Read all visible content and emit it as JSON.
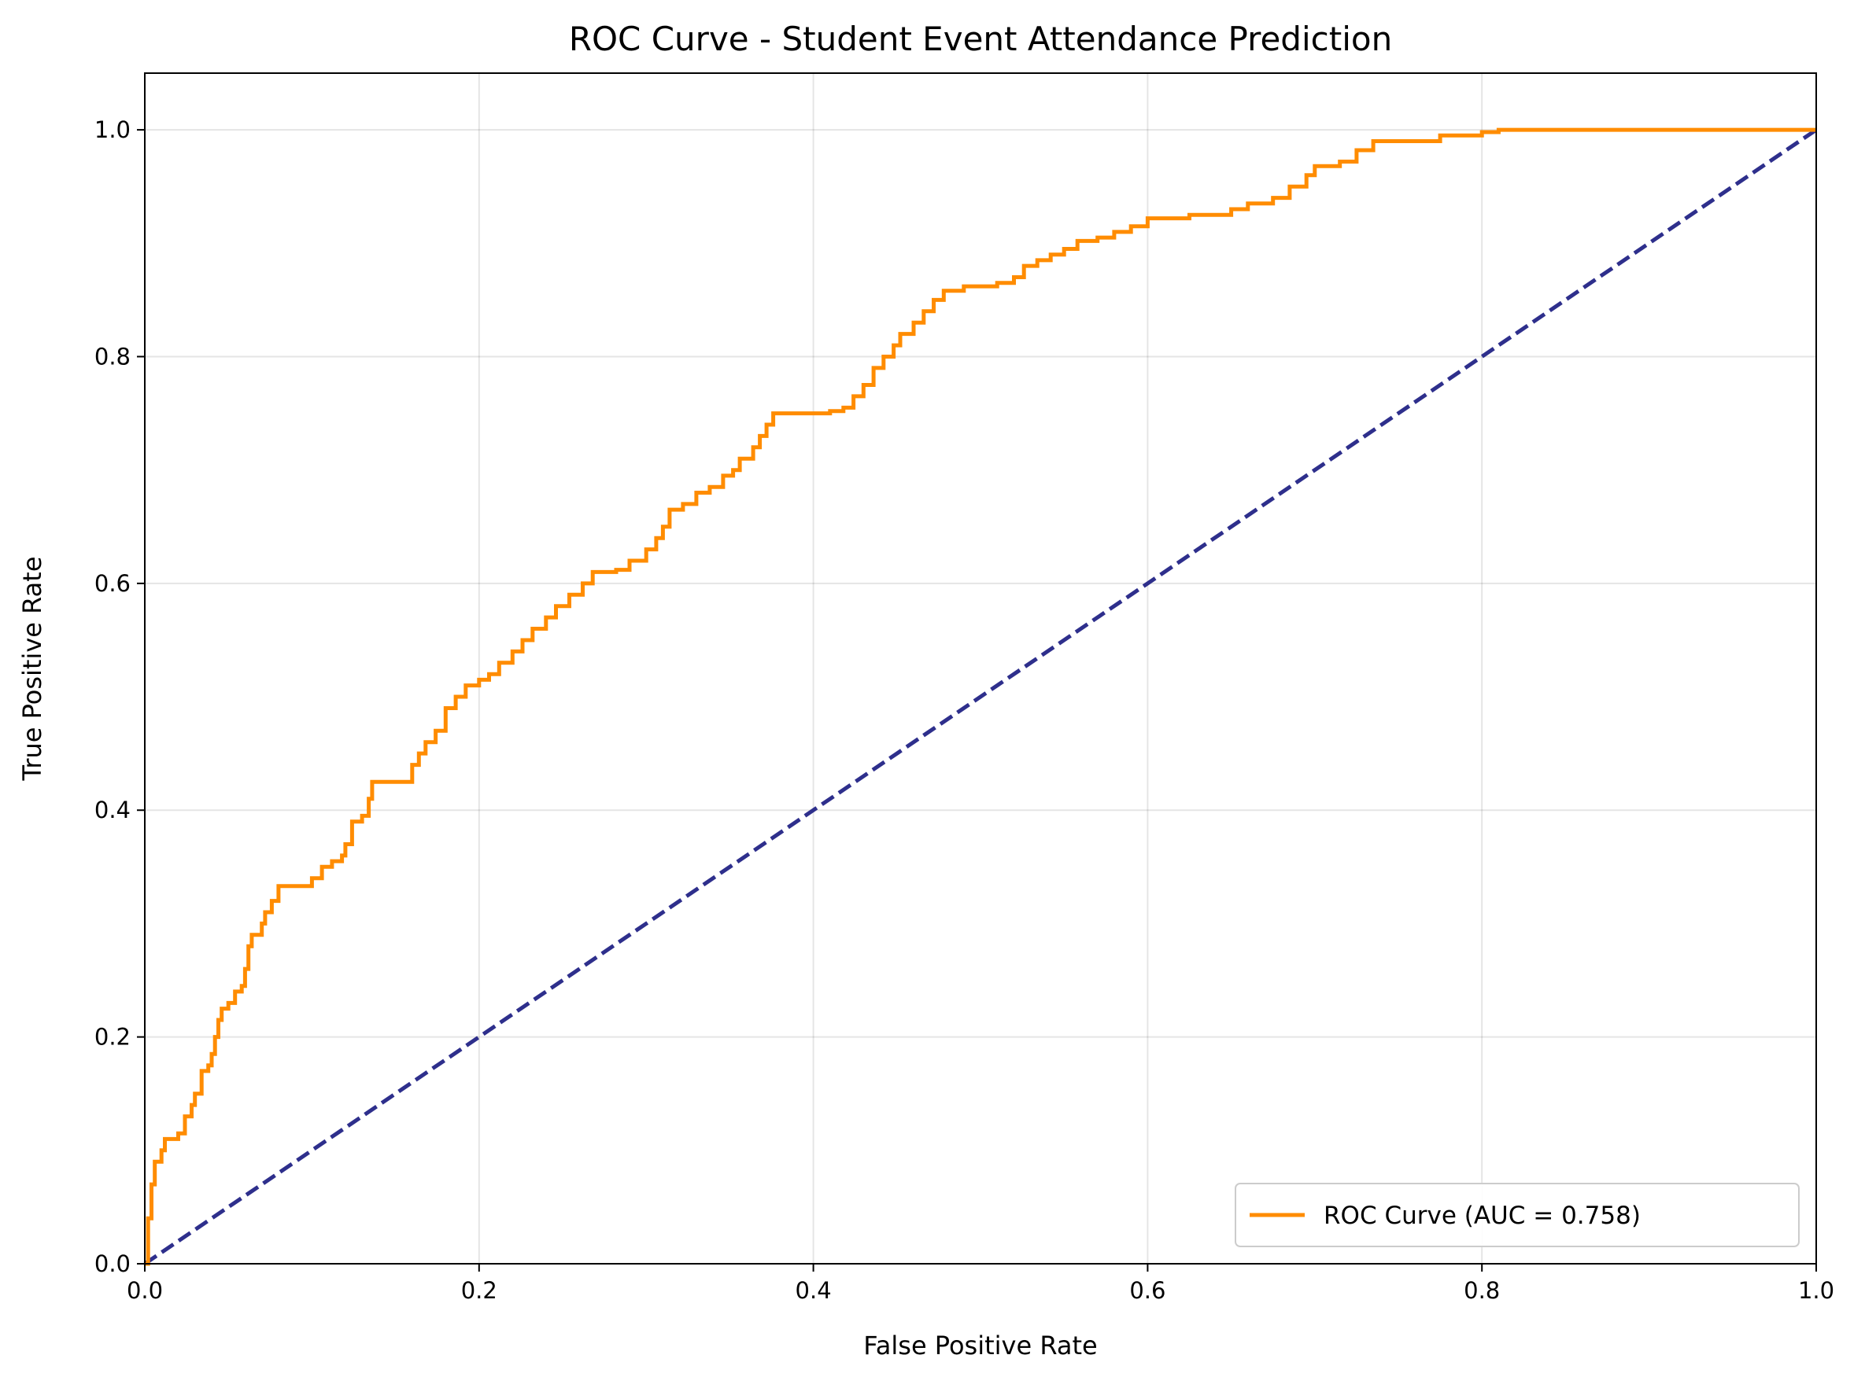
{
  "chart_data": {
    "type": "line",
    "title": "ROC Curve - Student Event Attendance Prediction",
    "xlabel": "False Positive Rate",
    "ylabel": "True Positive Rate",
    "xlim": [
      0.0,
      1.0
    ],
    "ylim": [
      0.0,
      1.05
    ],
    "x_ticks": [
      "0.0",
      "0.2",
      "0.4",
      "0.6",
      "0.8",
      "1.0"
    ],
    "y_ticks": [
      "0.0",
      "0.2",
      "0.4",
      "0.6",
      "0.8",
      "1.0"
    ],
    "grid": true,
    "legend_position": "bottom-right",
    "series": [
      {
        "name": "ROC Curve (AUC = 0.758)",
        "color": "#ff8c00",
        "style": "solid",
        "points": [
          [
            0.0,
            0.0
          ],
          [
            0.002,
            0.04
          ],
          [
            0.004,
            0.07
          ],
          [
            0.006,
            0.09
          ],
          [
            0.01,
            0.1
          ],
          [
            0.012,
            0.11
          ],
          [
            0.02,
            0.115
          ],
          [
            0.024,
            0.13
          ],
          [
            0.028,
            0.14
          ],
          [
            0.03,
            0.15
          ],
          [
            0.034,
            0.17
          ],
          [
            0.038,
            0.175
          ],
          [
            0.04,
            0.185
          ],
          [
            0.042,
            0.2
          ],
          [
            0.044,
            0.215
          ],
          [
            0.046,
            0.225
          ],
          [
            0.05,
            0.23
          ],
          [
            0.054,
            0.24
          ],
          [
            0.058,
            0.245
          ],
          [
            0.06,
            0.26
          ],
          [
            0.062,
            0.28
          ],
          [
            0.064,
            0.29
          ],
          [
            0.07,
            0.3
          ],
          [
            0.072,
            0.31
          ],
          [
            0.076,
            0.32
          ],
          [
            0.08,
            0.333
          ],
          [
            0.098,
            0.333
          ],
          [
            0.1,
            0.34
          ],
          [
            0.106,
            0.35
          ],
          [
            0.112,
            0.355
          ],
          [
            0.118,
            0.36
          ],
          [
            0.12,
            0.37
          ],
          [
            0.124,
            0.39
          ],
          [
            0.13,
            0.395
          ],
          [
            0.134,
            0.41
          ],
          [
            0.136,
            0.425
          ],
          [
            0.154,
            0.425
          ],
          [
            0.16,
            0.44
          ],
          [
            0.164,
            0.45
          ],
          [
            0.168,
            0.46
          ],
          [
            0.174,
            0.47
          ],
          [
            0.18,
            0.49
          ],
          [
            0.186,
            0.5
          ],
          [
            0.192,
            0.51
          ],
          [
            0.2,
            0.515
          ],
          [
            0.206,
            0.52
          ],
          [
            0.212,
            0.53
          ],
          [
            0.22,
            0.54
          ],
          [
            0.226,
            0.55
          ],
          [
            0.232,
            0.56
          ],
          [
            0.24,
            0.57
          ],
          [
            0.246,
            0.58
          ],
          [
            0.254,
            0.59
          ],
          [
            0.262,
            0.6
          ],
          [
            0.268,
            0.61
          ],
          [
            0.282,
            0.612
          ],
          [
            0.29,
            0.62
          ],
          [
            0.3,
            0.63
          ],
          [
            0.306,
            0.64
          ],
          [
            0.31,
            0.65
          ],
          [
            0.314,
            0.665
          ],
          [
            0.322,
            0.67
          ],
          [
            0.33,
            0.68
          ],
          [
            0.338,
            0.685
          ],
          [
            0.346,
            0.695
          ],
          [
            0.352,
            0.7
          ],
          [
            0.356,
            0.71
          ],
          [
            0.364,
            0.72
          ],
          [
            0.368,
            0.73
          ],
          [
            0.372,
            0.74
          ],
          [
            0.376,
            0.75
          ],
          [
            0.41,
            0.752
          ],
          [
            0.418,
            0.755
          ],
          [
            0.424,
            0.765
          ],
          [
            0.43,
            0.775
          ],
          [
            0.436,
            0.79
          ],
          [
            0.442,
            0.8
          ],
          [
            0.448,
            0.81
          ],
          [
            0.452,
            0.82
          ],
          [
            0.46,
            0.83
          ],
          [
            0.466,
            0.84
          ],
          [
            0.472,
            0.85
          ],
          [
            0.478,
            0.858
          ],
          [
            0.49,
            0.862
          ],
          [
            0.51,
            0.865
          ],
          [
            0.52,
            0.87
          ],
          [
            0.526,
            0.88
          ],
          [
            0.534,
            0.885
          ],
          [
            0.542,
            0.89
          ],
          [
            0.55,
            0.895
          ],
          [
            0.558,
            0.902
          ],
          [
            0.57,
            0.905
          ],
          [
            0.58,
            0.91
          ],
          [
            0.59,
            0.915
          ],
          [
            0.6,
            0.922
          ],
          [
            0.625,
            0.925
          ],
          [
            0.65,
            0.93
          ],
          [
            0.66,
            0.935
          ],
          [
            0.675,
            0.94
          ],
          [
            0.685,
            0.95
          ],
          [
            0.695,
            0.96
          ],
          [
            0.7,
            0.968
          ],
          [
            0.715,
            0.972
          ],
          [
            0.725,
            0.982
          ],
          [
            0.735,
            0.99
          ],
          [
            0.76,
            0.99
          ],
          [
            0.775,
            0.995
          ],
          [
            0.8,
            0.998
          ],
          [
            0.81,
            1.0
          ],
          [
            1.0,
            1.0
          ]
        ]
      },
      {
        "name": "",
        "color": "#2e2f8c",
        "style": "dashed",
        "points": [
          [
            0.0,
            0.0
          ],
          [
            1.0,
            1.0
          ]
        ]
      }
    ]
  }
}
